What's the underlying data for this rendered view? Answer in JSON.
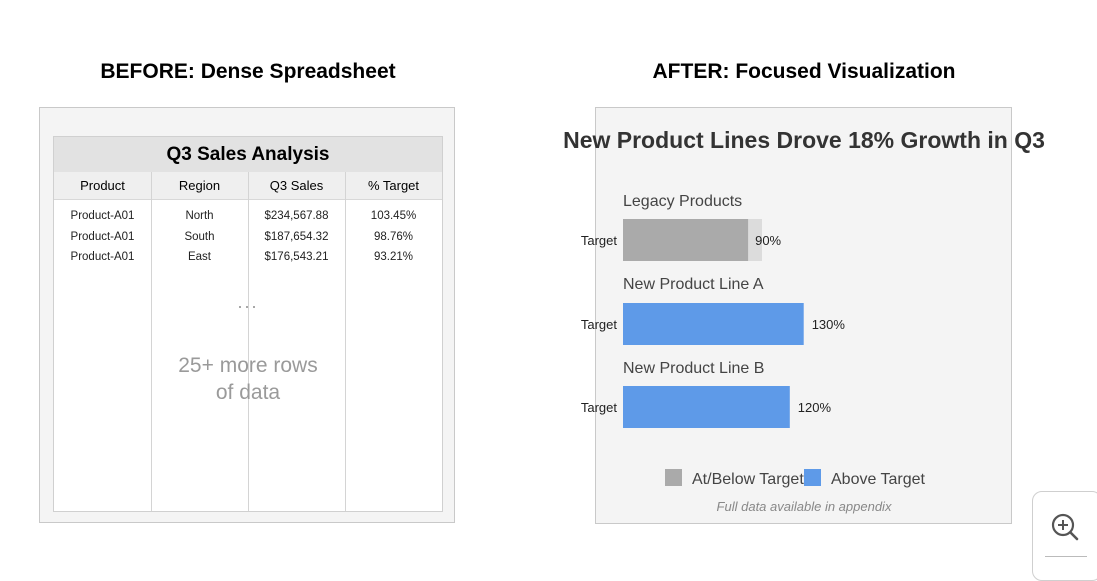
{
  "before": {
    "heading": "BEFORE: Dense Spreadsheet",
    "table": {
      "title": "Q3 Sales Analysis",
      "columns": [
        "Product",
        "Region",
        "Q3 Sales",
        "% Target"
      ],
      "rows": [
        [
          "Product-A01",
          "North",
          "$234,567.88",
          "103.45%"
        ],
        [
          "Product-A01",
          "South",
          "$187,654.32",
          "98.76%"
        ],
        [
          "Product-A01",
          "East",
          "$176,543.21",
          "93.21%"
        ]
      ],
      "ellipsis": "...",
      "more_rows_line1": "25+ more rows",
      "more_rows_line2": "of data"
    }
  },
  "after": {
    "heading": "AFTER: Focused Visualization",
    "note": "Full data available in appendix"
  },
  "chart_data": {
    "type": "bar",
    "orientation": "horizontal",
    "title": "New Product Lines Drove 18% Growth in Q3",
    "target_value": 100,
    "target_label": "Target",
    "categories": [
      "Legacy Products",
      "New Product Line A",
      "New Product Line B"
    ],
    "values": [
      90,
      130,
      120
    ],
    "value_labels": [
      "90%",
      "130%",
      "120%"
    ],
    "unit": "%",
    "legend": [
      {
        "label": "At/Below Target",
        "color": "#aaaaaa"
      },
      {
        "label": "Above Target",
        "color": "#5e9ae8"
      }
    ],
    "legend_position": "bottom",
    "grid": false
  },
  "colors": {
    "below": "#aaaaaa",
    "above": "#5e9ae8",
    "target_band": "#dcdcdc"
  },
  "zoom": {
    "icon": "zoom-in-icon"
  }
}
